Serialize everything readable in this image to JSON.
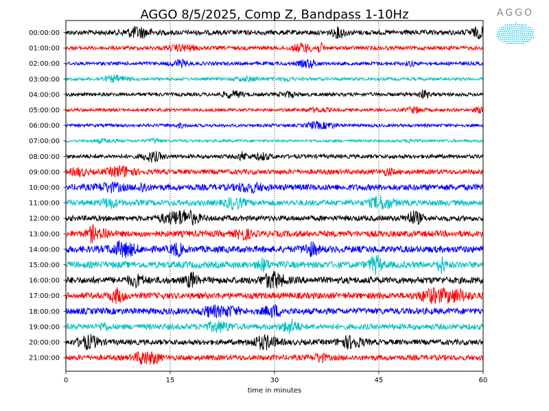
{
  "chart_data": {
    "type": "line",
    "title": "AGGO 8/5/2025, Comp Z, Bandpass 1-10Hz",
    "xlabel": "time in minutes",
    "ylabel": "",
    "xlim": [
      0,
      60
    ],
    "x_ticks": [
      0,
      15,
      30,
      45,
      60
    ],
    "x_tick_labels": [
      "0",
      "15",
      "30",
      "45",
      "60"
    ],
    "vertical_gridlines_at": [
      15,
      30,
      45
    ],
    "grid": "vertical dotted",
    "row_colors_cycle": [
      "#000000",
      "#ff0000",
      "#0000ff",
      "#00bfbf"
    ],
    "rows": [
      {
        "label": "00:00:00",
        "color": "#000000",
        "amplitude": 0.55
      },
      {
        "label": "01:00:00",
        "color": "#ff0000",
        "amplitude": 0.45
      },
      {
        "label": "02:00:00",
        "color": "#0000ff",
        "amplitude": 0.4
      },
      {
        "label": "03:00:00",
        "color": "#00bfbf",
        "amplitude": 0.35
      },
      {
        "label": "04:00:00",
        "color": "#000000",
        "amplitude": 0.4
      },
      {
        "label": "05:00:00",
        "color": "#ff0000",
        "amplitude": 0.35
      },
      {
        "label": "06:00:00",
        "color": "#0000ff",
        "amplitude": 0.35
      },
      {
        "label": "07:00:00",
        "color": "#00bfbf",
        "amplitude": 0.3
      },
      {
        "label": "08:00:00",
        "color": "#000000",
        "amplitude": 0.45
      },
      {
        "label": "09:00:00",
        "color": "#ff0000",
        "amplitude": 0.55
      },
      {
        "label": "10:00:00",
        "color": "#0000ff",
        "amplitude": 0.7
      },
      {
        "label": "11:00:00",
        "color": "#00bfbf",
        "amplitude": 0.65
      },
      {
        "label": "12:00:00",
        "color": "#000000",
        "amplitude": 0.6
      },
      {
        "label": "13:00:00",
        "color": "#ff0000",
        "amplitude": 0.7
      },
      {
        "label": "14:00:00",
        "color": "#0000ff",
        "amplitude": 0.75
      },
      {
        "label": "15:00:00",
        "color": "#00bfbf",
        "amplitude": 0.75
      },
      {
        "label": "16:00:00",
        "color": "#000000",
        "amplitude": 0.75
      },
      {
        "label": "17:00:00",
        "color": "#ff0000",
        "amplitude": 0.7
      },
      {
        "label": "18:00:00",
        "color": "#0000ff",
        "amplitude": 0.7
      },
      {
        "label": "19:00:00",
        "color": "#00bfbf",
        "amplitude": 0.65
      },
      {
        "label": "20:00:00",
        "color": "#000000",
        "amplitude": 0.6
      },
      {
        "label": "21:00:00",
        "color": "#ff0000",
        "amplitude": 0.6
      }
    ]
  },
  "logo": {
    "text": "AGGO",
    "icon": "aggo-globe-logo-icon",
    "color": "#00bfdf"
  }
}
